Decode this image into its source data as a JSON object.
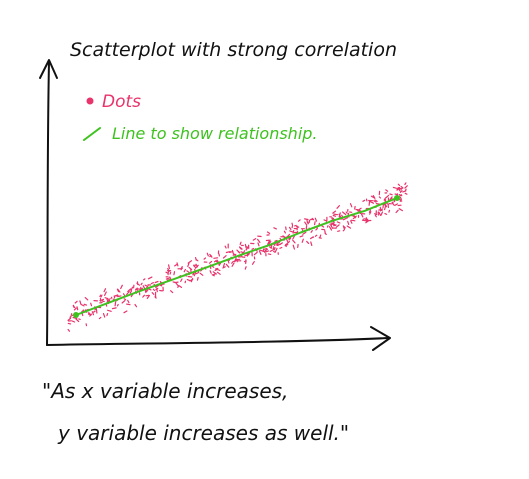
{
  "chart_data": {
    "type": "scatter",
    "title": "Scatterplot with strong correlation",
    "legend": [
      {
        "label": "Dots",
        "color": "#e8336b",
        "marker": "dot"
      },
      {
        "label": "Line to show relationship.",
        "color": "#3ec21f",
        "marker": "line"
      }
    ],
    "legend_position": "top-left",
    "grid": false,
    "axes": {
      "x_ticks": false,
      "y_ticks": false,
      "x_arrow": true,
      "y_arrow": true
    },
    "trend_line": {
      "x": [
        0,
        1
      ],
      "y": [
        0,
        1
      ]
    },
    "band_halfwidth": 0.14,
    "scatter_count": 520,
    "caption": [
      "\"As x variable increases,",
      "y variable increases as well.\""
    ]
  },
  "colors": {
    "ink": "#111111",
    "dots": "#e8336b",
    "line": "#3ec21f"
  }
}
